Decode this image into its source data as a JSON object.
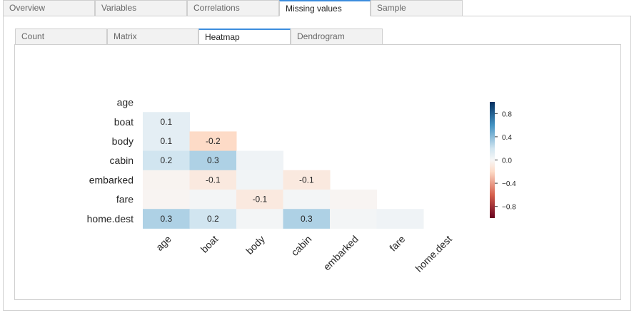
{
  "main_tabs": [
    {
      "label": "Overview",
      "active": false
    },
    {
      "label": "Variables",
      "active": false
    },
    {
      "label": "Correlations",
      "active": false
    },
    {
      "label": "Missing values",
      "active": true
    },
    {
      "label": "Sample",
      "active": false
    }
  ],
  "sub_tabs": [
    {
      "label": "Count",
      "active": false
    },
    {
      "label": "Matrix",
      "active": false
    },
    {
      "label": "Heatmap",
      "active": true
    },
    {
      "label": "Dendrogram",
      "active": false
    }
  ],
  "chart_data": {
    "type": "heatmap",
    "title": "",
    "rows": [
      "age",
      "boat",
      "body",
      "cabin",
      "embarked",
      "fare",
      "home.dest"
    ],
    "columns": [
      "age",
      "boat",
      "body",
      "cabin",
      "embarked",
      "fare",
      "home.dest"
    ],
    "mask": "upper-triangle-including-diagonal",
    "values": [
      [
        null,
        null,
        null,
        null,
        null,
        null,
        null
      ],
      [
        0.1,
        null,
        null,
        null,
        null,
        null,
        null
      ],
      [
        0.1,
        -0.2,
        null,
        null,
        null,
        null,
        null
      ],
      [
        0.2,
        0.3,
        0.04,
        null,
        null,
        null,
        null
      ],
      [
        -0.03,
        -0.1,
        0.03,
        -0.1,
        null,
        null,
        null
      ],
      [
        -0.02,
        0.02,
        -0.1,
        0.02,
        -0.02,
        null,
        null
      ],
      [
        0.3,
        0.2,
        0.02,
        0.3,
        0.02,
        0.04,
        null
      ]
    ],
    "annotations": [
      [
        null,
        null,
        null,
        null,
        null,
        null,
        null
      ],
      [
        "0.1",
        null,
        null,
        null,
        null,
        null,
        null
      ],
      [
        "0.1",
        "-0.2",
        null,
        null,
        null,
        null,
        null
      ],
      [
        "0.2",
        "0.3",
        "",
        null,
        null,
        null,
        null
      ],
      [
        "",
        "-0.1",
        "",
        "-0.1",
        null,
        null,
        null
      ],
      [
        "",
        "",
        "-0.1",
        "",
        "",
        null,
        null
      ],
      [
        "0.3",
        "0.2",
        "",
        "0.3",
        "",
        "",
        null
      ]
    ],
    "colorbar": {
      "range": [
        -1,
        1
      ],
      "ticks": [
        "0.8",
        "0.4",
        "0.0",
        "−0.4",
        "−0.8"
      ],
      "tick_values": [
        0.8,
        0.4,
        0.0,
        -0.4,
        -0.8
      ],
      "colormap": "RdBu",
      "colors": [
        "#67001f",
        "#d6604d",
        "#fddbc7",
        "#f7f7f7",
        "#d1e5f0",
        "#4393c3",
        "#053061"
      ]
    }
  }
}
